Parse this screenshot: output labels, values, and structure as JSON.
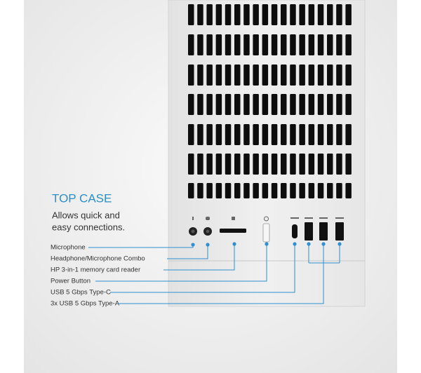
{
  "header": {
    "title": "TOP CASE",
    "description": [
      "Allows quick and",
      "easy connections."
    ]
  },
  "callouts": [
    {
      "label": "Microphone"
    },
    {
      "label": "Headphone/Microphone Combo"
    },
    {
      "label": "HP 3-in-1 memory card reader"
    },
    {
      "label": "Power Button"
    },
    {
      "label": "USB 5 Gbps Type-C"
    },
    {
      "label": "3x USB 5 Gbps Type-A"
    }
  ]
}
